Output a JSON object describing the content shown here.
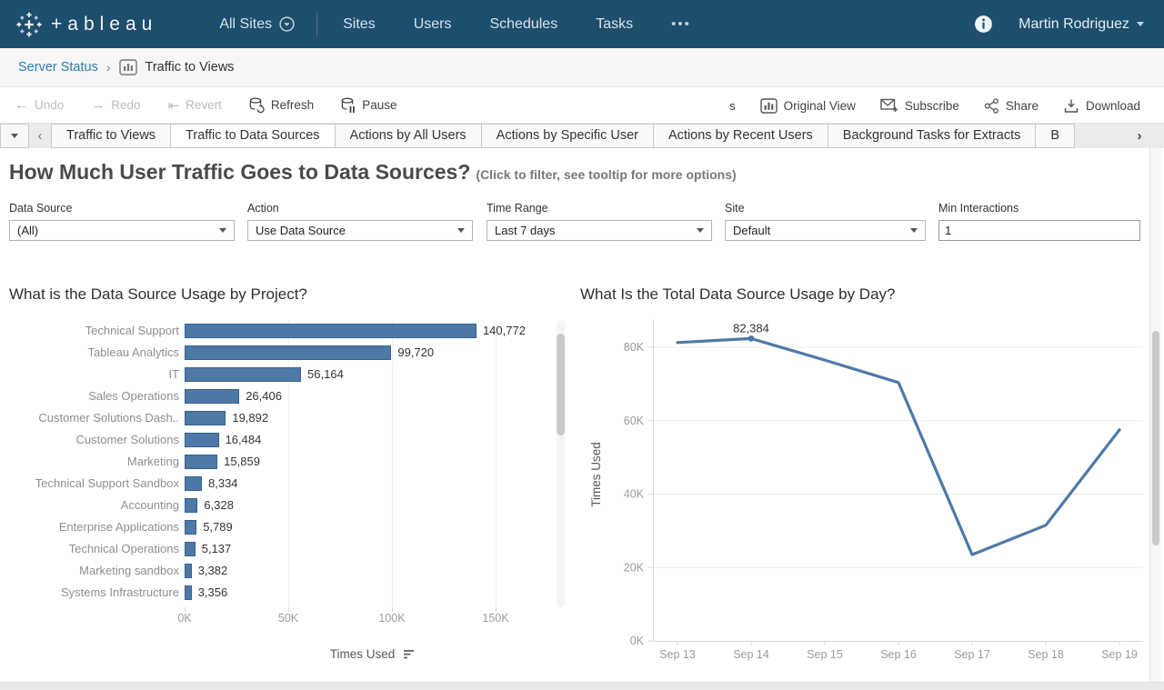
{
  "colors": {
    "topbar_bg": "#1e4e6d",
    "accent_blue": "#4e79a7",
    "bar_border": "#36618e",
    "link_blue": "#2b7bb1"
  },
  "topbar": {
    "logo_text": "+ableau",
    "all_sites": "All Sites",
    "nav_items": {
      "sites": "Sites",
      "users": "Users",
      "schedules": "Schedules",
      "tasks": "Tasks"
    },
    "more": "•••",
    "user_name": "Martin Rodriguez"
  },
  "breadcrumb": {
    "parent": "Server Status",
    "separator": "›",
    "current": "Traffic to Views"
  },
  "toolbar": {
    "undo": "Undo",
    "redo": "Redo",
    "revert": "Revert",
    "refresh": "Refresh",
    "pause": "Pause",
    "truncated_text": "s",
    "original_view": "Original View",
    "subscribe": "Subscribe",
    "share": "Share",
    "download": "Download",
    "undo_arrow": "←",
    "redo_arrow": "→",
    "revert_arrow": "⇤"
  },
  "tabbar": {
    "scroll_left": "‹",
    "scroll_right": "›",
    "tabs": [
      {
        "label": "Traffic to Views",
        "active": false
      },
      {
        "label": "Traffic to Data Sources",
        "active": true
      },
      {
        "label": "Actions by All Users",
        "active": false
      },
      {
        "label": "Actions by Specific User",
        "active": false
      },
      {
        "label": "Actions by Recent Users",
        "active": false
      },
      {
        "label": "Background Tasks for Extracts",
        "active": false
      },
      {
        "label": "B",
        "active": false
      }
    ]
  },
  "page": {
    "title": "How Much User Traffic Goes to Data Sources?",
    "subtitle": "(Click to filter, see tooltip for more options)"
  },
  "filters": [
    {
      "label": "Data Source",
      "value": "(All)",
      "type": "select"
    },
    {
      "label": "Action",
      "value": "Use Data Source",
      "type": "select"
    },
    {
      "label": "Time Range",
      "value": "Last 7 days",
      "type": "select"
    },
    {
      "label": "Site",
      "value": "Default",
      "type": "select"
    },
    {
      "label": "Min Interactions",
      "value": "1",
      "type": "input"
    }
  ],
  "chart_data": [
    {
      "type": "bar",
      "title": "What is the Data Source Usage by Project?",
      "orientation": "horizontal",
      "categories": [
        "Technical Support",
        "Tableau Analytics",
        "IT",
        "Sales Operations",
        "Customer Solutions Dash..",
        "Customer Solutions",
        "Marketing",
        "Technical Support Sandbox",
        "Accounting",
        "Enterprise Applications",
        "Technical Operations",
        "Marketing sandbox",
        "Systems Infrastructure"
      ],
      "values": [
        140772,
        99720,
        56164,
        26406,
        19892,
        16484,
        15859,
        8334,
        6328,
        5789,
        5137,
        3382,
        3356
      ],
      "xlabel": "Times Used",
      "x_ticks": [
        "0K",
        "50K",
        "100K",
        "150K"
      ],
      "xlim": [
        0,
        150000
      ],
      "grid": "vertical",
      "sortable": true
    },
    {
      "type": "line",
      "title": "What Is the Total Data Source Usage by Day?",
      "x": [
        "Sep 13",
        "Sep 14",
        "Sep 15",
        "Sep 16",
        "Sep 17",
        "Sep 18",
        "Sep 19"
      ],
      "values": [
        81300,
        82384,
        76500,
        70400,
        23500,
        31500,
        57500
      ],
      "annotation": {
        "text": "82,384",
        "point_index": 1,
        "value": 82384
      },
      "ylabel": "Times Used",
      "y_ticks": [
        {
          "label": "0K",
          "value": 0
        },
        {
          "label": "20K",
          "value": 20000
        },
        {
          "label": "40K",
          "value": 40000
        },
        {
          "label": "60K",
          "value": 60000
        },
        {
          "label": "80K",
          "value": 80000
        }
      ],
      "ylim": [
        0,
        84000
      ],
      "grid": "horizontal"
    }
  ]
}
